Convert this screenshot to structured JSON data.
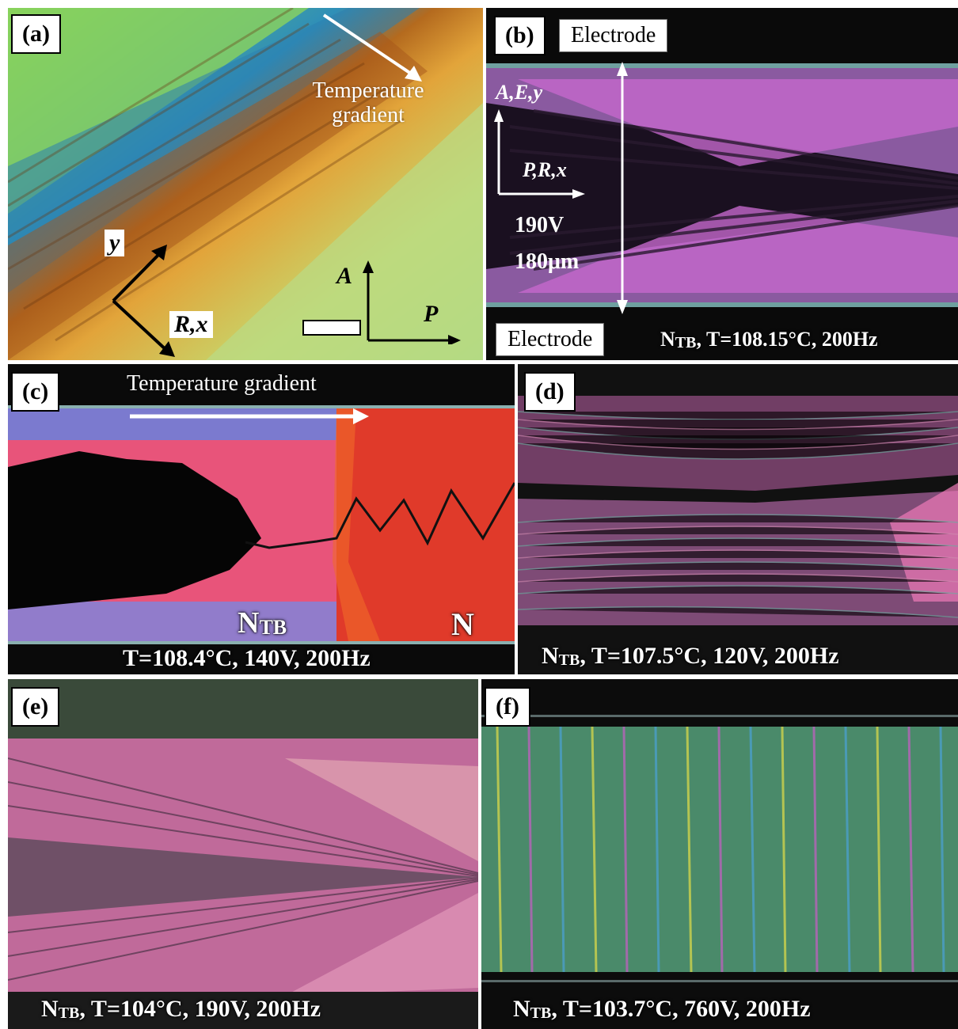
{
  "panels": {
    "a": {
      "label": "(a)",
      "temperature_gradient": "Temperature gradient",
      "axis_y": "y",
      "axis_rx": "R,x",
      "axis_a": "A",
      "axis_p": "P"
    },
    "b": {
      "label": "(b)",
      "electrode_top": "Electrode",
      "electrode_bottom": "Electrode",
      "axis_aey": "A,E,y",
      "axis_prx": "P,R,x",
      "voltage": "190V",
      "thickness": "180μm",
      "caption_main": "N",
      "caption_sub": "TB",
      "caption_rest": ", T=108.15°C, 200Hz"
    },
    "c": {
      "label": "(c)",
      "temperature_gradient": "Temperature gradient",
      "phase_ntb_main": "N",
      "phase_ntb_sub": "TB",
      "phase_n": "N",
      "caption": "T=108.4°C, 140V, 200Hz"
    },
    "d": {
      "label": "(d)",
      "caption_main": "N",
      "caption_sub": "TB",
      "caption_rest": ", T=107.5°C, 120V, 200Hz"
    },
    "e": {
      "label": "(e)",
      "caption_main": "N",
      "caption_sub": "TB",
      "caption_rest": ", T=104°C, 190V, 200Hz"
    },
    "f": {
      "label": "(f)",
      "caption_main": "N",
      "caption_sub": "TB",
      "caption_rest": ", T=103.7°C, 760V, 200Hz"
    }
  },
  "colors": {
    "texture_green": "#9fd86a",
    "texture_orange": "#d8902a",
    "texture_blue": "#2a7fb8",
    "texture_magenta": "#d070d8",
    "texture_red": "#e2452f",
    "electrode_dark": "#0a0a0a"
  }
}
